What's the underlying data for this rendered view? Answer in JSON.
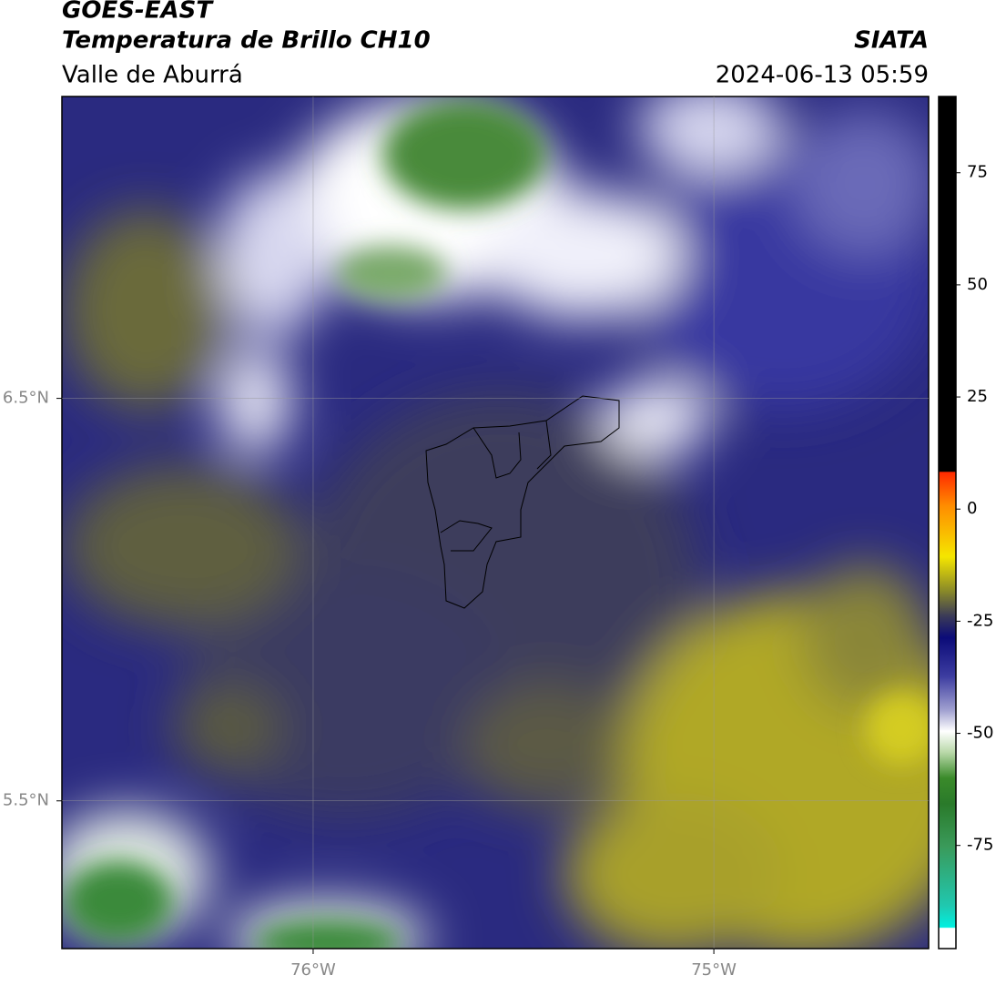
{
  "header": {
    "title": "GOES-EAST",
    "subtitle": "Temperatura de Brillo CH10",
    "region": "Valle de Aburrá",
    "source": "SIATA",
    "datetime": "2024-06-13 05:59"
  },
  "map": {
    "xlim": [
      -76.627,
      -74.464
    ],
    "ylim": [
      5.133,
      7.25
    ],
    "xticks": [
      {
        "value": -76,
        "label": "76°W"
      },
      {
        "value": -75,
        "label": "75°W"
      }
    ],
    "yticks": [
      {
        "value": 6.5,
        "label": "6.5°N"
      },
      {
        "value": 5.5,
        "label": "5.5°N"
      }
    ],
    "grid": true,
    "colorbar_lim": [
      -98,
      92
    ],
    "colorbar_ticks": [
      75,
      50,
      25,
      0,
      -25,
      -50,
      -75
    ]
  }
}
